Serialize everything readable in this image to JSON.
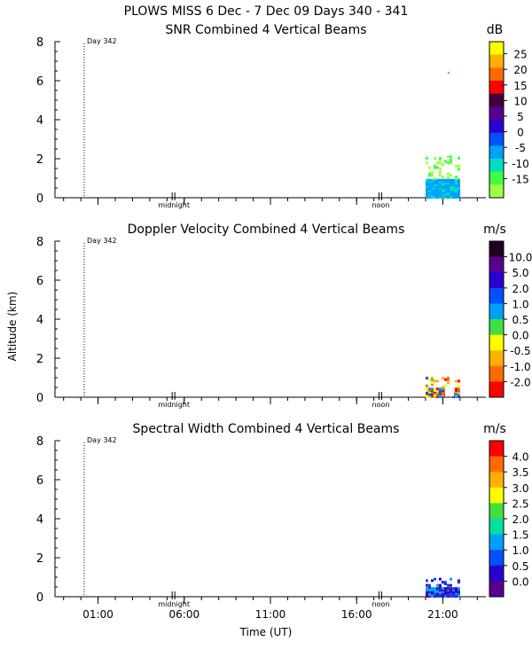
{
  "header": {
    "title": "PLOWS MISS   6 Dec -  7 Dec 09 Days 340 - 341"
  },
  "shared": {
    "ylabel": "Altitude (km)",
    "xlabel": "Time (UT)",
    "y_ticks": [
      "0",
      "2",
      "4",
      "6",
      "8"
    ],
    "x_ticks": [
      "01:00",
      "06:00",
      "11:00",
      "16:00",
      "21:00"
    ],
    "day_marker": "Day 342",
    "midnight_label": "midnight",
    "noon_label": "noon"
  },
  "chart_data": [
    {
      "type": "heatmap",
      "title": "SNR Combined 4 Vertical Beams",
      "unit": "dB",
      "ylim": [
        0,
        8
      ],
      "colorbar_ticks": [
        "25",
        "20",
        "15",
        "10",
        "5",
        "0",
        "-5",
        "-10",
        "-15"
      ],
      "colorbar_colors": [
        "#ffff00",
        "#ffb000",
        "#ff6a00",
        "#ff0000",
        "#400040",
        "#5a0090",
        "#2a00d0",
        "#0050ff",
        "#00a0ff",
        "#00e0c0",
        "#40ff40",
        "#a0ff40"
      ],
      "data_time_range_ut": [
        "20:00",
        "22:00"
      ],
      "data_altitude_range_km": [
        0.0,
        2.1
      ]
    },
    {
      "type": "heatmap",
      "title": "Doppler Velocity Combined 4 Vertical Beams",
      "unit": "m/s",
      "ylim": [
        0,
        8
      ],
      "colorbar_ticks": [
        "10.0",
        "5.0",
        "2.0",
        "1.0",
        "0.5",
        "0.0",
        "-0.5",
        "-1.0",
        "-2.0"
      ],
      "colorbar_colors": [
        "#200020",
        "#5a0090",
        "#2a00d0",
        "#0050ff",
        "#00a0ff",
        "#40e040",
        "#ffff00",
        "#ffb000",
        "#ff6a00",
        "#ff0000"
      ],
      "data_time_range_ut": [
        "20:00",
        "22:00"
      ],
      "data_altitude_range_km": [
        0.0,
        1.0
      ]
    },
    {
      "type": "heatmap",
      "title": "Spectral Width Combined 4 Vertical Beams",
      "unit": "m/s",
      "ylim": [
        0,
        8
      ],
      "colorbar_ticks": [
        "4.0",
        "3.5",
        "3.0",
        "2.5",
        "2.0",
        "1.5",
        "1.0",
        "0.5",
        "0.0"
      ],
      "colorbar_colors": [
        "#ff0000",
        "#ff6a00",
        "#ffb000",
        "#ffff00",
        "#40e040",
        "#00e0a0",
        "#00a0ff",
        "#0050ff",
        "#2a00d0",
        "#5a0090"
      ],
      "data_time_range_ut": [
        "20:00",
        "22:00"
      ],
      "data_altitude_range_km": [
        0.0,
        0.9
      ]
    }
  ]
}
